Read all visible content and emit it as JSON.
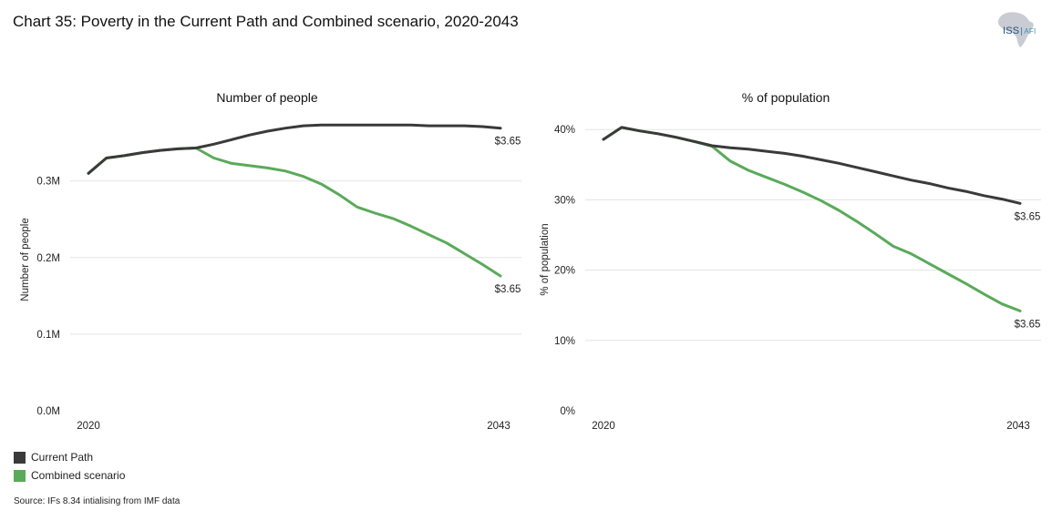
{
  "title": "Chart 35: Poverty in the Current Path and Combined scenario, 2020-2043",
  "logo": {
    "main": "ISS",
    "sub": "AFI"
  },
  "colors": {
    "current_path": "#3a3a3a",
    "combined": "#5aaa5a",
    "grid": "#e3e3e3"
  },
  "legend": [
    {
      "label": "Current Path",
      "color": "#3a3a3a"
    },
    {
      "label": "Combined scenario",
      "color": "#5aaa5a"
    }
  ],
  "source": "Source: IFs 8.34 intialising from IMF data",
  "chart_data": [
    {
      "type": "line",
      "title": "Number of people",
      "xlabel": "",
      "ylabel": "Number of people",
      "x": [
        2020,
        2021,
        2022,
        2023,
        2024,
        2025,
        2026,
        2027,
        2028,
        2029,
        2030,
        2031,
        2032,
        2033,
        2034,
        2035,
        2036,
        2037,
        2038,
        2039,
        2040,
        2041,
        2042,
        2043
      ],
      "x_tick_labels": [
        "2020",
        "2043"
      ],
      "ylim": [
        0,
        0.38
      ],
      "yticks": [
        0,
        0.1,
        0.2,
        0.3
      ],
      "ytick_labels": [
        "0.0M",
        "0.1M",
        "0.2M",
        "0.3M"
      ],
      "series": [
        {
          "name": "Current Path",
          "end_label": "$3.65",
          "values": [
            0.31,
            0.33,
            0.333,
            0.337,
            0.34,
            0.342,
            0.343,
            0.348,
            0.354,
            0.36,
            0.365,
            0.369,
            0.372,
            0.373,
            0.373,
            0.373,
            0.373,
            0.373,
            0.373,
            0.372,
            0.372,
            0.372,
            0.371,
            0.369
          ]
        },
        {
          "name": "Combined scenario",
          "end_label": "$3.65",
          "values": [
            0.31,
            0.33,
            0.333,
            0.337,
            0.34,
            0.342,
            0.343,
            0.33,
            0.323,
            0.32,
            0.317,
            0.313,
            0.306,
            0.296,
            0.282,
            0.266,
            0.258,
            0.251,
            0.241,
            0.23,
            0.219,
            0.205,
            0.191,
            0.176
          ]
        }
      ]
    },
    {
      "type": "line",
      "title": "% of population",
      "xlabel": "",
      "ylabel": "% of population",
      "x": [
        2020,
        2021,
        2022,
        2023,
        2024,
        2025,
        2026,
        2027,
        2028,
        2029,
        2030,
        2031,
        2032,
        2033,
        2034,
        2035,
        2036,
        2037,
        2038,
        2039,
        2040,
        2041,
        2042,
        2043
      ],
      "x_tick_labels": [
        "2020",
        "2043"
      ],
      "ylim": [
        0,
        40
      ],
      "yticks": [
        0,
        10,
        20,
        30,
        40
      ],
      "ytick_labels": [
        "0%",
        "10%",
        "20%",
        "30%",
        "40%"
      ],
      "series": [
        {
          "name": "Current Path",
          "end_label": "$3.65",
          "values": [
            38.6,
            40.3,
            39.8,
            39.4,
            38.9,
            38.3,
            37.7,
            37.4,
            37.2,
            36.9,
            36.6,
            36.2,
            35.7,
            35.2,
            34.6,
            34.0,
            33.4,
            32.8,
            32.3,
            31.7,
            31.2,
            30.6,
            30.1,
            29.5
          ]
        },
        {
          "name": "Combined scenario",
          "end_label": "$3.65",
          "values": [
            38.6,
            40.3,
            39.8,
            39.4,
            38.9,
            38.3,
            37.6,
            35.5,
            34.2,
            33.2,
            32.2,
            31.1,
            29.9,
            28.5,
            26.9,
            25.2,
            23.4,
            22.3,
            20.9,
            19.5,
            18.1,
            16.6,
            15.2,
            14.2
          ]
        }
      ]
    }
  ]
}
